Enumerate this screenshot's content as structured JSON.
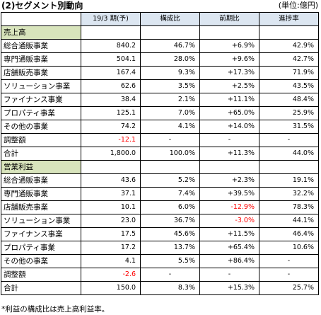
{
  "title": "(2)セグメント別動向",
  "unit": "(単位:億円)",
  "headers": [
    "19/3 期(予)",
    "構成比",
    "前期比",
    "進捗率"
  ],
  "sections": [
    {
      "label": "売上高",
      "rows": [
        {
          "label": "総合通販事業",
          "values": [
            "840.2",
            "46.7%",
            "+6.9%",
            "42.9%"
          ],
          "negative": [
            false,
            false,
            false,
            false
          ]
        },
        {
          "label": "専門通販事業",
          "values": [
            "504.1",
            "28.0%",
            "+9.6%",
            "42.7%"
          ],
          "negative": [
            false,
            false,
            false,
            false
          ]
        },
        {
          "label": "店舗販売事業",
          "values": [
            "167.4",
            "9.3%",
            "+17.3%",
            "71.9%"
          ],
          "negative": [
            false,
            false,
            false,
            false
          ]
        },
        {
          "label": "ソリューション事業",
          "values": [
            "62.6",
            "3.5%",
            "+2.5%",
            "43.5%"
          ],
          "negative": [
            false,
            false,
            false,
            false
          ]
        },
        {
          "label": "ファイナンス事業",
          "values": [
            "38.4",
            "2.1%",
            "+11.1%",
            "48.4%"
          ],
          "negative": [
            false,
            false,
            false,
            false
          ]
        },
        {
          "label": "プロパティ事業",
          "values": [
            "125.1",
            "7.0%",
            "+65.0%",
            "25.9%"
          ],
          "negative": [
            false,
            false,
            false,
            false
          ]
        },
        {
          "label": "その他の事業",
          "values": [
            "74.2",
            "4.1%",
            "+14.0%",
            "31.5%"
          ],
          "negative": [
            false,
            false,
            false,
            false
          ]
        },
        {
          "label": "調整額",
          "values": [
            "-12.1",
            "-",
            "-",
            "-"
          ],
          "negative": [
            true,
            false,
            false,
            false
          ]
        },
        {
          "label": "合計",
          "values": [
            "1,800.0",
            "100.0%",
            "+11.3%",
            "44.0%"
          ],
          "negative": [
            false,
            false,
            false,
            false
          ]
        }
      ]
    },
    {
      "label": "営業利益",
      "rows": [
        {
          "label": "総合通販事業",
          "values": [
            "43.6",
            "5.2%",
            "+2.3%",
            "19.1%"
          ],
          "negative": [
            false,
            false,
            false,
            false
          ]
        },
        {
          "label": "専門通販事業",
          "values": [
            "37.1",
            "7.4%",
            "+39.5%",
            "32.2%"
          ],
          "negative": [
            false,
            false,
            false,
            false
          ]
        },
        {
          "label": "店舗販売事業",
          "values": [
            "10.1",
            "6.0%",
            "-12.9%",
            "78.3%"
          ],
          "negative": [
            false,
            false,
            true,
            false
          ]
        },
        {
          "label": "ソリューション事業",
          "values": [
            "23.0",
            "36.7%",
            "-3.0%",
            "44.1%"
          ],
          "negative": [
            false,
            false,
            true,
            false
          ]
        },
        {
          "label": "ファイナンス事業",
          "values": [
            "17.5",
            "45.6%",
            "+11.5%",
            "46.4%"
          ],
          "negative": [
            false,
            false,
            false,
            false
          ]
        },
        {
          "label": "プロパティ事業",
          "values": [
            "17.2",
            "13.7%",
            "+65.4%",
            "10.6%"
          ],
          "negative": [
            false,
            false,
            false,
            false
          ]
        },
        {
          "label": "その他の事業",
          "values": [
            "4.1",
            "5.5%",
            "+86.4%",
            "-"
          ],
          "negative": [
            false,
            false,
            false,
            false
          ]
        },
        {
          "label": "調整額",
          "values": [
            "-2.6",
            "-",
            "-",
            "-"
          ],
          "negative": [
            true,
            false,
            false,
            false
          ]
        },
        {
          "label": "合計",
          "values": [
            "150.0",
            "8.3%",
            "+15.3%",
            "25.7%"
          ],
          "negative": [
            false,
            false,
            false,
            false
          ]
        }
      ]
    }
  ],
  "note": "*利益の構成比は売上高利益率。",
  "colors": {
    "header_bg": "#dce6f1",
    "section_bg": "#d8e4bc",
    "negative": "#ff0000"
  }
}
